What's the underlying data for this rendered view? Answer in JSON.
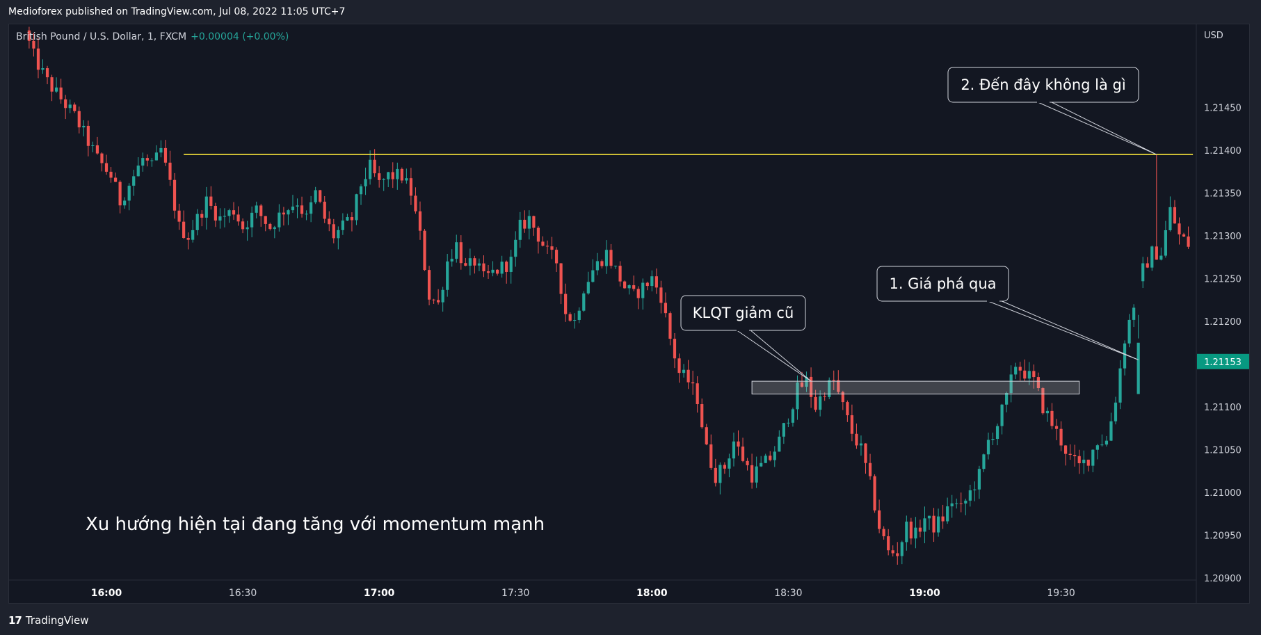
{
  "header": {
    "published_by": "Medioforex published on TradingView.com, Jul 08, 2022 11:05 UTC+7"
  },
  "legend": {
    "symbol": "British Pound / U.S. Dollar, 1, FXCM",
    "change": "+0.00004 (+0.00%)"
  },
  "footer": {
    "brand": "TradingView"
  },
  "colors": {
    "up": "#26a69a",
    "down": "#ef5350",
    "background": "#131722",
    "level_line": "#ffeb3b",
    "price_tag": "#089981"
  },
  "chart_data": {
    "type": "candlestick",
    "currency": "USD",
    "ylim": [
      1.2087,
      1.2155
    ],
    "xlim": [
      "15:43",
      "20:13"
    ],
    "y_ticks": [
      "1.21450",
      "1.21400",
      "1.21350",
      "1.21300",
      "1.21250",
      "1.21200",
      "1.21100",
      "1.21050",
      "1.21000",
      "1.20950",
      "1.20900"
    ],
    "y_tick_values": [
      1.2145,
      1.214,
      1.2135,
      1.213,
      1.2125,
      1.212,
      1.211,
      1.2105,
      1.21,
      1.2095,
      1.209
    ],
    "x_ticks": [
      {
        "label": "16:00",
        "minutes": 0,
        "bold": true
      },
      {
        "label": "16:30",
        "minutes": 30,
        "bold": false
      },
      {
        "label": "17:00",
        "minutes": 60,
        "bold": true
      },
      {
        "label": "17:30",
        "minutes": 90,
        "bold": false
      },
      {
        "label": "18:00",
        "minutes": 120,
        "bold": true
      },
      {
        "label": "18:30",
        "minutes": 150,
        "bold": false
      },
      {
        "label": "19:00",
        "minutes": 180,
        "bold": true
      },
      {
        "label": "19:30",
        "minutes": 210,
        "bold": false
      }
    ],
    "last_price": 1.21153,
    "last_price_label": "1.21153",
    "path": [
      [
        -18,
        1.2154
      ],
      [
        -16,
        1.2151
      ],
      [
        -13,
        1.2148
      ],
      [
        -10,
        1.2146
      ],
      [
        -7,
        1.2144
      ],
      [
        -4,
        1.2141
      ],
      [
        -2,
        1.2139
      ],
      [
        1,
        1.2137
      ],
      [
        3,
        1.2134
      ],
      [
        5,
        1.2136
      ],
      [
        8,
        1.2139
      ],
      [
        10,
        1.2138
      ],
      [
        12,
        1.214
      ],
      [
        14,
        1.2136
      ],
      [
        16,
        1.2131
      ],
      [
        18,
        1.213
      ],
      [
        20,
        1.2132
      ],
      [
        22,
        1.2134
      ],
      [
        25,
        1.2132
      ],
      [
        28,
        1.2133
      ],
      [
        30,
        1.2131
      ],
      [
        33,
        1.2133
      ],
      [
        36,
        1.2131
      ],
      [
        39,
        1.2133
      ],
      [
        42,
        1.2134
      ],
      [
        44,
        1.2132
      ],
      [
        46,
        1.2135
      ],
      [
        48,
        1.2132
      ],
      [
        50,
        1.213
      ],
      [
        52,
        1.2131
      ],
      [
        54,
        1.2132
      ],
      [
        56,
        1.2136
      ],
      [
        58,
        1.2138
      ],
      [
        60,
        1.2136
      ],
      [
        62,
        1.2137
      ],
      [
        65,
        1.2137
      ],
      [
        67,
        1.2135
      ],
      [
        69,
        1.213
      ],
      [
        71,
        1.2123
      ],
      [
        73,
        1.2122
      ],
      [
        75,
        1.2127
      ],
      [
        77,
        1.2129
      ],
      [
        79,
        1.2126
      ],
      [
        81,
        1.2127
      ],
      [
        83,
        1.2125
      ],
      [
        86,
        1.2126
      ],
      [
        89,
        1.2127
      ],
      [
        91,
        1.2131
      ],
      [
        93,
        1.2132
      ],
      [
        95,
        1.213
      ],
      [
        97,
        1.2128
      ],
      [
        99,
        1.2127
      ],
      [
        101,
        1.2121
      ],
      [
        103,
        1.212
      ],
      [
        105,
        1.2124
      ],
      [
        107,
        1.2126
      ],
      [
        110,
        1.2128
      ],
      [
        112,
        1.2126
      ],
      [
        114,
        1.2124
      ],
      [
        116,
        1.2123
      ],
      [
        118,
        1.2124
      ],
      [
        120,
        1.2125
      ],
      [
        122,
        1.2123
      ],
      [
        124,
        1.2118
      ],
      [
        126,
        1.2114
      ],
      [
        128,
        1.2113
      ],
      [
        130,
        1.2111
      ],
      [
        132,
        1.2105
      ],
      [
        134,
        1.2102
      ],
      [
        136,
        1.2103
      ],
      [
        138,
        1.2106
      ],
      [
        140,
        1.2104
      ],
      [
        142,
        1.2102
      ],
      [
        144,
        1.2103
      ],
      [
        146,
        1.2104
      ],
      [
        148,
        1.2106
      ],
      [
        150,
        1.2109
      ],
      [
        152,
        1.2112
      ],
      [
        154,
        1.2113
      ],
      [
        156,
        1.211
      ],
      [
        158,
        1.2112
      ],
      [
        160,
        1.2113
      ],
      [
        162,
        1.211
      ],
      [
        164,
        1.2107
      ],
      [
        166,
        1.2105
      ],
      [
        168,
        1.2101
      ],
      [
        170,
        1.2096
      ],
      [
        172,
        1.2093
      ],
      [
        174,
        1.2093
      ],
      [
        176,
        1.2096
      ],
      [
        178,
        1.2095
      ],
      [
        180,
        1.2097
      ],
      [
        182,
        1.2096
      ],
      [
        184,
        1.2097
      ],
      [
        186,
        1.2099
      ],
      [
        188,
        1.2098
      ],
      [
        190,
        1.21
      ],
      [
        192,
        1.2102
      ],
      [
        194,
        1.2106
      ],
      [
        196,
        1.2108
      ],
      [
        198,
        1.2111
      ],
      [
        200,
        1.2115
      ],
      [
        202,
        1.2114
      ],
      [
        204,
        1.2113
      ],
      [
        206,
        1.211
      ],
      [
        208,
        1.2108
      ],
      [
        210,
        1.2106
      ],
      [
        212,
        1.2104
      ],
      [
        214,
        1.2103
      ],
      [
        216,
        1.2104
      ],
      [
        218,
        1.2106
      ],
      [
        220,
        1.2106
      ],
      [
        222,
        1.2111
      ],
      [
        224,
        1.2118
      ],
      [
        226,
        1.2122
      ],
      [
        228,
        1.2126
      ],
      [
        230,
        1.2128
      ],
      [
        232,
        1.2128
      ],
      [
        234,
        1.2133
      ],
      [
        236,
        1.213
      ],
      [
        238,
        1.2129
      ]
    ],
    "horizontal_level": {
      "price": 1.21395,
      "from_minutes": 17,
      "to_minutes": 239
    },
    "range_box": {
      "from_minutes": 142,
      "to_minutes": 214,
      "top": 1.2113,
      "bottom": 1.21115
    },
    "annotations": [
      {
        "text": "2. Đến đây không là gì",
        "anchor_minutes": 231,
        "anchor_price": 1.21395
      },
      {
        "text": "1. Giá phá qua",
        "anchor_minutes": 227,
        "anchor_price": 1.21155
      },
      {
        "text": "KLQT giảm cũ",
        "anchor_minutes": 155,
        "anchor_price": 1.2113
      },
      {
        "text": "Xu hướng hiện tại đang tăng với momentum mạnh"
      }
    ]
  }
}
